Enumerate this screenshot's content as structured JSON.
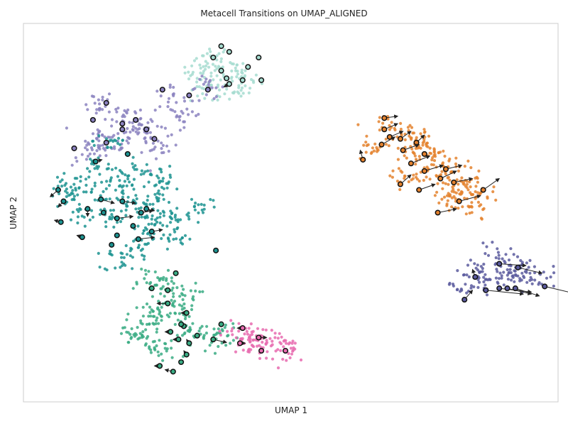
{
  "chart_data": {
    "type": "scatter",
    "title": "Metacell Transitions on UMAP_ALIGNED",
    "xlabel": "UMAP 1",
    "ylabel": "UMAP 2",
    "xlim": [
      0,
      10
    ],
    "ylim": [
      0,
      10
    ],
    "grid": false,
    "ticks": false,
    "series": [
      {
        "color": "#a6dcd0",
        "centers": [
          [
            3.55,
            9.1
          ],
          [
            3.3,
            8.75
          ],
          [
            3.65,
            8.7
          ],
          [
            3.85,
            8.7
          ],
          [
            4.1,
            8.5
          ],
          [
            3.45,
            8.2
          ],
          [
            3.9,
            8.2
          ]
        ]
      },
      {
        "color": "#8b82c0",
        "centers": [
          [
            1.35,
            7.9
          ],
          [
            1.9,
            7.6
          ],
          [
            1.4,
            7.05
          ],
          [
            2.0,
            7.05
          ],
          [
            2.2,
            7.35
          ],
          [
            2.3,
            7.1
          ],
          [
            1.65,
            6.85
          ],
          [
            2.55,
            6.65
          ],
          [
            3.0,
            7.6
          ],
          [
            3.45,
            8.3
          ],
          [
            2.7,
            8.0
          ],
          [
            1.25,
            6.55
          ]
        ]
      },
      {
        "color": "#1c9391",
        "centers": [
          [
            1.65,
            6.9
          ],
          [
            1.4,
            6.25
          ],
          [
            0.8,
            5.7
          ],
          [
            0.8,
            5.4
          ],
          [
            1.3,
            5.6
          ],
          [
            1.9,
            5.5
          ],
          [
            2.1,
            5.2
          ],
          [
            2.3,
            5.1
          ],
          [
            2.65,
            5.55
          ],
          [
            2.5,
            5.9
          ],
          [
            2.2,
            6.1
          ],
          [
            1.75,
            5.9
          ],
          [
            1.05,
            5.0
          ],
          [
            1.6,
            4.8
          ],
          [
            2.5,
            4.7
          ],
          [
            2.8,
            4.9
          ],
          [
            2.35,
            4.4
          ],
          [
            3.3,
            5.2
          ],
          [
            2.9,
            4.3
          ],
          [
            2.0,
            4.0
          ],
          [
            1.85,
            3.75
          ]
        ]
      },
      {
        "color": "#3aac84",
        "centers": [
          [
            2.3,
            3.3
          ],
          [
            2.6,
            3.1
          ],
          [
            2.95,
            2.85
          ],
          [
            2.85,
            2.55
          ],
          [
            2.45,
            2.5
          ],
          [
            2.7,
            2.3
          ],
          [
            2.3,
            2.1
          ],
          [
            2.05,
            1.8
          ],
          [
            2.35,
            1.55
          ],
          [
            2.6,
            1.35
          ],
          [
            3.15,
            1.9
          ],
          [
            3.5,
            1.7
          ],
          [
            3.75,
            1.8
          ]
        ]
      },
      {
        "color": "#e76baf",
        "centers": [
          [
            4.0,
            1.8
          ],
          [
            4.2,
            1.7
          ],
          [
            4.5,
            1.65
          ],
          [
            4.75,
            1.55
          ],
          [
            4.35,
            1.4
          ],
          [
            5.0,
            1.35
          ]
        ]
      },
      {
        "color": "#e4822e",
        "centers": [
          [
            6.9,
            7.3
          ],
          [
            7.05,
            7.05
          ],
          [
            7.3,
            6.95
          ],
          [
            7.55,
            6.75
          ],
          [
            7.75,
            6.45
          ],
          [
            8.05,
            6.15
          ],
          [
            7.35,
            6.6
          ],
          [
            7.6,
            6.05
          ],
          [
            7.9,
            5.8
          ],
          [
            8.3,
            5.75
          ],
          [
            8.55,
            5.5
          ],
          [
            8.15,
            5.55
          ],
          [
            8.4,
            5.05
          ],
          [
            6.5,
            6.65
          ],
          [
            7.1,
            5.95
          ],
          [
            8.0,
            5.3
          ]
        ]
      },
      {
        "color": "#5a5a9e",
        "centers": [
          [
            8.5,
            3.5
          ],
          [
            8.85,
            3.8
          ],
          [
            9.1,
            3.6
          ],
          [
            9.35,
            3.45
          ],
          [
            9.6,
            3.35
          ],
          [
            8.25,
            3.1
          ],
          [
            8.65,
            3.2
          ],
          [
            9.05,
            3.25
          ]
        ]
      }
    ],
    "metacells": [
      {
        "x": 3.7,
        "y": 9.4,
        "color": "#a6dcd0"
      },
      {
        "x": 3.55,
        "y": 9.1,
        "color": "#a6dcd0"
      },
      {
        "x": 3.85,
        "y": 9.25,
        "color": "#a6dcd0"
      },
      {
        "x": 4.4,
        "y": 9.1,
        "color": "#a6dcd0"
      },
      {
        "x": 4.2,
        "y": 8.85,
        "color": "#a6dcd0"
      },
      {
        "x": 3.7,
        "y": 8.75,
        "color": "#a6dcd0"
      },
      {
        "x": 3.8,
        "y": 8.55,
        "color": "#a6dcd0"
      },
      {
        "x": 4.1,
        "y": 8.5,
        "color": "#a6dcd0"
      },
      {
        "x": 4.45,
        "y": 8.5,
        "color": "#a6dcd0"
      },
      {
        "x": 3.85,
        "y": 8.4,
        "color": "#a6dcd0",
        "dx": -0.1,
        "dy": -0.08
      },
      {
        "x": 3.45,
        "y": 8.25,
        "color": "#8b82c0"
      },
      {
        "x": 3.1,
        "y": 8.1,
        "color": "#8b82c0"
      },
      {
        "x": 2.6,
        "y": 8.25,
        "color": "#8b82c0"
      },
      {
        "x": 1.55,
        "y": 7.9,
        "color": "#8b82c0"
      },
      {
        "x": 1.3,
        "y": 7.45,
        "color": "#8b82c0"
      },
      {
        "x": 1.85,
        "y": 7.35,
        "color": "#8b82c0"
      },
      {
        "x": 2.1,
        "y": 7.45,
        "color": "#8b82c0"
      },
      {
        "x": 2.3,
        "y": 7.2,
        "color": "#8b82c0"
      },
      {
        "x": 2.45,
        "y": 6.95,
        "color": "#8b82c0"
      },
      {
        "x": 1.55,
        "y": 6.85,
        "color": "#8b82c0"
      },
      {
        "x": 0.95,
        "y": 6.7,
        "color": "#8b82c0"
      },
      {
        "x": 1.85,
        "y": 7.2,
        "color": "#8b82c0"
      },
      {
        "x": 1.35,
        "y": 6.35,
        "color": "#1c9391",
        "dx": 0.12,
        "dy": 0.05
      },
      {
        "x": 1.95,
        "y": 6.55,
        "color": "#1c9391"
      },
      {
        "x": 0.65,
        "y": 5.6,
        "color": "#1c9391",
        "dx": -0.15,
        "dy": -0.18
      },
      {
        "x": 0.75,
        "y": 5.3,
        "color": "#1c9391",
        "dx": -0.1,
        "dy": -0.15
      },
      {
        "x": 0.7,
        "y": 4.75,
        "color": "#1c9391",
        "dx": -0.12,
        "dy": 0.05
      },
      {
        "x": 1.45,
        "y": 5.35,
        "color": "#1c9391",
        "dx": 0.25,
        "dy": -0.1
      },
      {
        "x": 1.85,
        "y": 5.3,
        "color": "#1c9391",
        "dx": 0.25,
        "dy": -0.05
      },
      {
        "x": 2.3,
        "y": 5.1,
        "color": "#1c9391",
        "dx": 0.15,
        "dy": -0.05
      },
      {
        "x": 1.2,
        "y": 5.1,
        "color": "#1c9391",
        "dx": 0.0,
        "dy": -0.2
      },
      {
        "x": 1.5,
        "y": 5.0,
        "color": "#1c9391"
      },
      {
        "x": 2.2,
        "y": 5.0,
        "color": "#1c9391",
        "dx": 0.22,
        "dy": 0.05
      },
      {
        "x": 1.75,
        "y": 4.85,
        "color": "#1c9391",
        "dx": 0.3,
        "dy": 0.05
      },
      {
        "x": 2.05,
        "y": 4.65,
        "color": "#1c9391"
      },
      {
        "x": 2.4,
        "y": 4.5,
        "color": "#1c9391",
        "dx": 0.2,
        "dy": 0.05
      },
      {
        "x": 2.15,
        "y": 4.3,
        "color": "#1c9391",
        "dx": 0.3,
        "dy": 0.05
      },
      {
        "x": 1.75,
        "y": 4.4,
        "color": "#1c9391"
      },
      {
        "x": 1.65,
        "y": 4.15,
        "color": "#1c9391"
      },
      {
        "x": 1.1,
        "y": 4.35,
        "color": "#1c9391",
        "dx": -0.1,
        "dy": 0.05
      },
      {
        "x": 3.6,
        "y": 4.0,
        "color": "#1c9391"
      },
      {
        "x": 2.4,
        "y": 3.0,
        "color": "#3aac84"
      },
      {
        "x": 2.85,
        "y": 3.4,
        "color": "#3aac84"
      },
      {
        "x": 2.7,
        "y": 2.95,
        "color": "#3aac84"
      },
      {
        "x": 2.7,
        "y": 2.6,
        "color": "#3aac84",
        "dx": -0.2,
        "dy": 0.0
      },
      {
        "x": 3.05,
        "y": 2.35,
        "color": "#3aac84",
        "dx": -0.1,
        "dy": 0.0
      },
      {
        "x": 3.0,
        "y": 2.0,
        "color": "#3aac84"
      },
      {
        "x": 2.75,
        "y": 1.85,
        "color": "#3aac84",
        "dx": -0.1,
        "dy": 0.0
      },
      {
        "x": 3.25,
        "y": 1.75,
        "color": "#3aac84"
      },
      {
        "x": 3.1,
        "y": 1.55,
        "color": "#3aac84",
        "dx": -0.05,
        "dy": 0.1
      },
      {
        "x": 3.55,
        "y": 1.65,
        "color": "#3aac84",
        "dx": 0.25,
        "dy": -0.08
      },
      {
        "x": 2.9,
        "y": 1.65,
        "color": "#3aac84",
        "dx": -0.1,
        "dy": 0.0
      },
      {
        "x": 3.05,
        "y": 1.25,
        "color": "#3aac84",
        "dx": -0.05,
        "dy": 0.1
      },
      {
        "x": 2.95,
        "y": 1.05,
        "color": "#3aac84"
      },
      {
        "x": 2.55,
        "y": 0.95,
        "color": "#3aac84",
        "dx": -0.1,
        "dy": 0.0
      },
      {
        "x": 2.8,
        "y": 0.8,
        "color": "#3aac84",
        "dx": -0.15,
        "dy": 0.05
      },
      {
        "x": 3.7,
        "y": 2.05,
        "color": "#3aac84"
      },
      {
        "x": 2.95,
        "y": 2.05,
        "color": "#3aac84"
      },
      {
        "x": 4.1,
        "y": 1.95,
        "color": "#e76baf",
        "dx": -0.1,
        "dy": 0.0
      },
      {
        "x": 4.4,
        "y": 1.7,
        "color": "#e76baf",
        "dx": 0.15,
        "dy": 0.0
      },
      {
        "x": 4.05,
        "y": 1.55,
        "color": "#e76baf",
        "dx": 0.1,
        "dy": 0.0
      },
      {
        "x": 4.45,
        "y": 1.35,
        "color": "#e76baf"
      },
      {
        "x": 4.9,
        "y": 1.35,
        "color": "#e76baf"
      },
      {
        "x": 6.75,
        "y": 7.5,
        "color": "#e4822e",
        "dx": 0.25,
        "dy": 0.05
      },
      {
        "x": 6.75,
        "y": 7.2,
        "color": "#e4822e",
        "dx": 0.25,
        "dy": 0.15
      },
      {
        "x": 6.85,
        "y": 7.0,
        "color": "#e4822e",
        "dx": 0.25,
        "dy": 0.15
      },
      {
        "x": 7.05,
        "y": 6.95,
        "color": "#e4822e",
        "dx": 0.2,
        "dy": 0.2
      },
      {
        "x": 6.7,
        "y": 6.8,
        "color": "#e4822e",
        "dx": 0.25,
        "dy": 0.2
      },
      {
        "x": 7.35,
        "y": 6.85,
        "color": "#e4822e",
        "dx": 0.15,
        "dy": 0.2
      },
      {
        "x": 7.1,
        "y": 6.65,
        "color": "#e4822e",
        "dx": 0.3,
        "dy": 0.15
      },
      {
        "x": 6.35,
        "y": 6.4,
        "color": "#e4822e",
        "dx": -0.05,
        "dy": 0.25
      },
      {
        "x": 7.25,
        "y": 6.3,
        "color": "#e4822e",
        "dx": 0.35,
        "dy": 0.2
      },
      {
        "x": 7.9,
        "y": 6.15,
        "color": "#e4822e",
        "dx": 0.3,
        "dy": 0.1
      },
      {
        "x": 7.5,
        "y": 6.1,
        "color": "#e4822e",
        "dx": 0.35,
        "dy": 0.15
      },
      {
        "x": 7.8,
        "y": 5.9,
        "color": "#e4822e",
        "dx": 0.3,
        "dy": 0.2
      },
      {
        "x": 7.05,
        "y": 5.75,
        "color": "#e4822e",
        "dx": 0.2,
        "dy": 0.25
      },
      {
        "x": 8.6,
        "y": 5.6,
        "color": "#e4822e",
        "dx": 0.3,
        "dy": 0.3
      },
      {
        "x": 7.4,
        "y": 5.6,
        "color": "#e4822e",
        "dx": 0.3,
        "dy": 0.15
      },
      {
        "x": 8.15,
        "y": 5.3,
        "color": "#e4822e",
        "dx": 0.4,
        "dy": 0.15
      },
      {
        "x": 7.75,
        "y": 5.0,
        "color": "#e4822e",
        "dx": 0.35,
        "dy": 0.1
      },
      {
        "x": 8.05,
        "y": 5.8,
        "color": "#e4822e",
        "dx": 0.35,
        "dy": 0.1
      },
      {
        "x": 7.5,
        "y": 6.55,
        "color": "#e4822e"
      },
      {
        "x": 8.9,
        "y": 3.65,
        "color": "#5a5a9e",
        "dx": 0.5,
        "dy": -0.05
      },
      {
        "x": 9.25,
        "y": 3.55,
        "color": "#5a5a9e",
        "dx": 0.45,
        "dy": -0.15
      },
      {
        "x": 8.45,
        "y": 3.3,
        "color": "#5a5a9e",
        "dx": -0.05,
        "dy": 0.2
      },
      {
        "x": 8.9,
        "y": 3.0,
        "color": "#5a5a9e",
        "dx": 0.6,
        "dy": -0.1
      },
      {
        "x": 9.2,
        "y": 3.0,
        "color": "#5a5a9e",
        "dx": 0.45,
        "dy": -0.2
      },
      {
        "x": 9.75,
        "y": 3.05,
        "color": "#5a5a9e",
        "dx": 0.6,
        "dy": -0.2
      },
      {
        "x": 9.05,
        "y": 3.0,
        "color": "#5a5a9e",
        "dx": 0.45,
        "dy": -0.15
      },
      {
        "x": 8.65,
        "y": 2.95,
        "color": "#5a5a9e",
        "dx": 0.7,
        "dy": -0.1
      },
      {
        "x": 8.25,
        "y": 2.7,
        "color": "#5a5a9e",
        "dx": 0.15,
        "dy": 0.25
      }
    ]
  }
}
